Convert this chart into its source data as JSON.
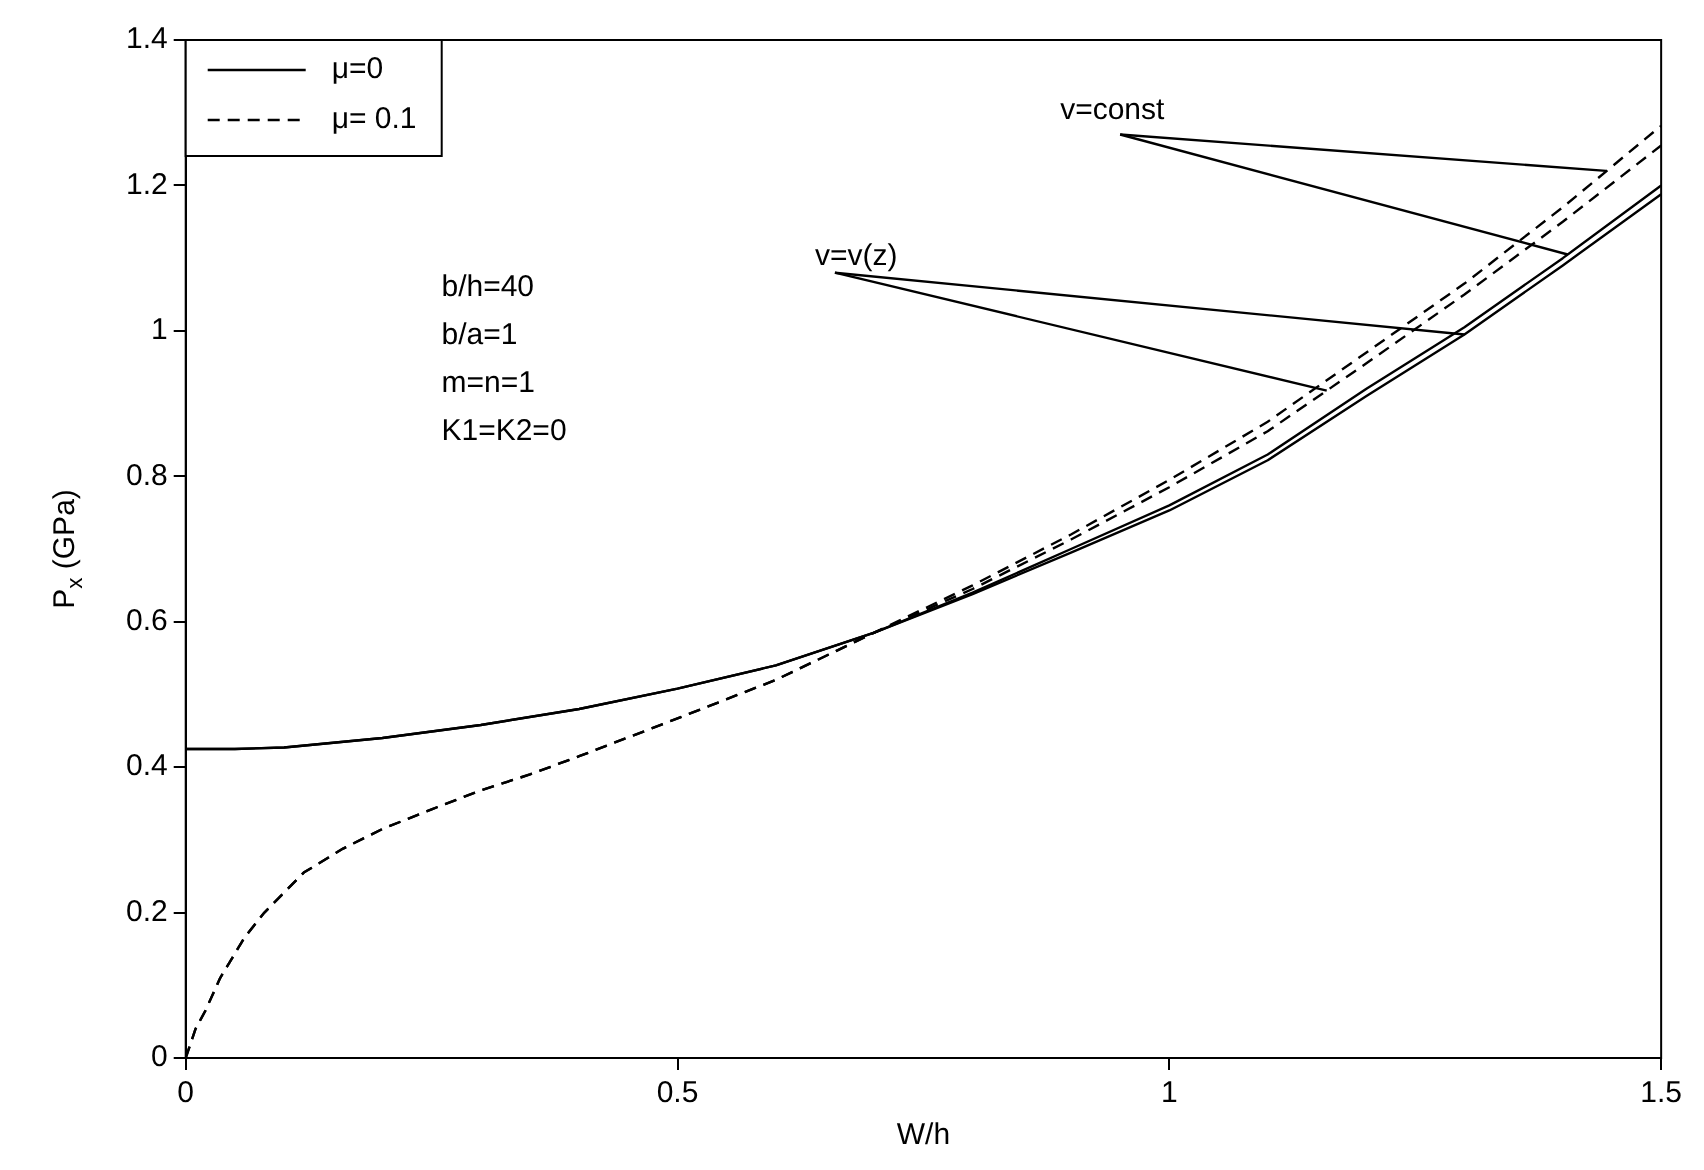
{
  "chart_data": {
    "type": "line",
    "xlabel": "W/h",
    "ylabel": "P$_{x}$ (GPa)",
    "xlim": [
      0,
      1.5
    ],
    "xticks": [
      0,
      0.5,
      1,
      1.5
    ],
    "ylim": [
      0,
      1.4
    ],
    "yticks": [
      0,
      0.2,
      0.4,
      0.6,
      0.8,
      1,
      1.2,
      1.4
    ],
    "grid": false,
    "legend": "top left",
    "marker": "none",
    "series": [
      {
        "name": "μ=0",
        "color": "#000000",
        "line_style": "solid",
        "x": [
          0,
          0.05,
          0.1,
          0.2,
          0.3,
          0.4,
          0.5,
          0.6,
          0.7,
          0.8,
          0.9,
          1.0,
          1.1,
          1.2,
          1.3,
          1.4,
          1.5
        ],
        "values": [
          0.425,
          0.425,
          0.427,
          0.44,
          0.458,
          0.48,
          0.508,
          0.54,
          0.585,
          0.64,
          0.7,
          0.76,
          0.83,
          0.92,
          1.005,
          1.1,
          1.2
        ]
      },
      {
        "color": "#000000",
        "line_style": "solid",
        "x": [
          0,
          0.05,
          0.1,
          0.2,
          0.3,
          0.4,
          0.5,
          0.6,
          0.7,
          0.8,
          0.9,
          1.0,
          1.1,
          1.2,
          1.3,
          1.4,
          1.5
        ],
        "values": [
          0.425,
          0.425,
          0.427,
          0.44,
          0.458,
          0.48,
          0.508,
          0.54,
          0.585,
          0.638,
          0.695,
          0.753,
          0.822,
          0.91,
          0.995,
          1.09,
          1.188
        ]
      },
      {
        "name": "μ= 0.1",
        "color": "#000000",
        "line_style": "dashed",
        "x": [
          0,
          0.01,
          0.02,
          0.035,
          0.06,
          0.08,
          0.12,
          0.16,
          0.2,
          0.25,
          0.3,
          0.35,
          0.4,
          0.5,
          0.6,
          0.7,
          0.8,
          0.9,
          1.0,
          1.1,
          1.2,
          1.3,
          1.4,
          1.5
        ],
        "values": [
          0,
          0.04,
          0.065,
          0.11,
          0.166,
          0.2,
          0.255,
          0.288,
          0.315,
          0.342,
          0.368,
          0.39,
          0.415,
          0.467,
          0.52,
          0.585,
          0.65,
          0.72,
          0.795,
          0.875,
          0.97,
          1.065,
          1.17,
          1.282
        ]
      },
      {
        "color": "#000000",
        "line_style": "dashed",
        "x": [
          0,
          0.01,
          0.02,
          0.035,
          0.06,
          0.08,
          0.12,
          0.16,
          0.2,
          0.25,
          0.3,
          0.35,
          0.4,
          0.5,
          0.6,
          0.7,
          0.8,
          0.9,
          1.0,
          1.1,
          1.2,
          1.3,
          1.4,
          1.5
        ],
        "values": [
          0,
          0.04,
          0.065,
          0.11,
          0.166,
          0.2,
          0.255,
          0.288,
          0.315,
          0.342,
          0.368,
          0.39,
          0.415,
          0.467,
          0.52,
          0.585,
          0.645,
          0.713,
          0.785,
          0.862,
          0.955,
          1.05,
          1.15,
          1.255
        ]
      }
    ],
    "annotations": [
      "b/h=40",
      "b/a=1",
      "m=n=1",
      "K1=K2=0",
      {
        "text": "v=const",
        "x": 1.444,
        "y": 1.22
      },
      {
        "text": "v=v(z)",
        "x": 1.3,
        "y": 0.995
      }
    ]
  }
}
